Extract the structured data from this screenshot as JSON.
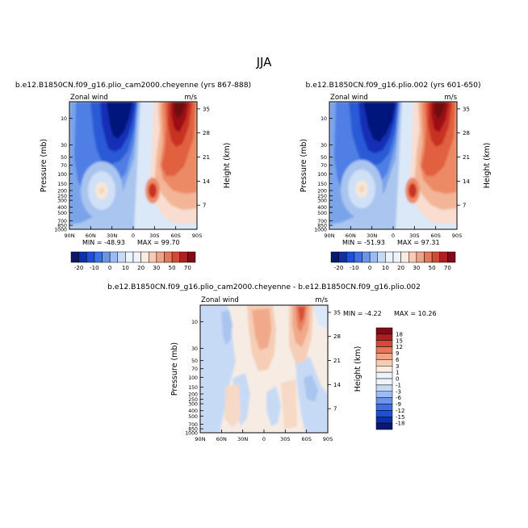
{
  "page": {
    "title": "JJA"
  },
  "colors": {
    "fill_blue_dark": "#1f3fd6",
    "fill_red": "#e8603f",
    "fill_white": "#ffffff"
  },
  "chart_data": [
    {
      "type": "heatmap",
      "variable": "Zonal wind",
      "units": "m/s",
      "title": "b.e12.B1850CN.f09_g16.plio_cam2000.cheyenne (yrs 867-888)",
      "xlabel": "",
      "ylabel": "Pressure (mb)",
      "y2label": "Height (km)",
      "x_ticks": [
        "90N",
        "60N",
        "30N",
        "0",
        "30S",
        "60S",
        "90S"
      ],
      "x_range": [
        90,
        -90
      ],
      "y_ticks": [
        10,
        30,
        50,
        70,
        100,
        150,
        200,
        250,
        300,
        400,
        500,
        700,
        850,
        1000
      ],
      "y_range_mb": [
        5,
        1000
      ],
      "y_scale": "log",
      "y2_ticks": [
        7,
        14,
        21,
        28,
        35
      ],
      "min": -48.93,
      "max": 99.7,
      "min_label": "MIN = -48.93",
      "max_label": "MAX = 99.70",
      "colorbar": {
        "orientation": "horizontal",
        "levels": [
          -20,
          -15,
          -10,
          -5,
          0,
          5,
          10,
          15,
          20,
          25,
          30,
          40,
          50,
          60,
          70
        ],
        "tick_labels": [
          "-20",
          "-10",
          "0",
          "10",
          "20",
          "30",
          "50",
          "70"
        ]
      },
      "features": [
        {
          "kind": "min",
          "value": -48.93,
          "lat": 25,
          "p_mb": 10
        },
        {
          "kind": "max",
          "value": 99.7,
          "lat": -60,
          "p_mb": 7
        },
        {
          "kind": "local_max",
          "value": 22,
          "lat": 50,
          "p_mb": 200
        },
        {
          "kind": "local_max",
          "value": 45,
          "lat": -35,
          "p_mb": 200
        }
      ]
    },
    {
      "type": "heatmap",
      "variable": "Zonal wind",
      "units": "m/s",
      "title": "b.e12.B1850CN.f09_g16.plio.002 (yrs 601-650)",
      "xlabel": "",
      "ylabel": "Pressure (mb)",
      "y2label": "Height (km)",
      "x_ticks": [
        "90N",
        "60N",
        "30N",
        "0",
        "30S",
        "60S",
        "90S"
      ],
      "x_range": [
        90,
        -90
      ],
      "y_ticks": [
        10,
        30,
        50,
        70,
        100,
        150,
        200,
        250,
        300,
        400,
        500,
        700,
        850,
        1000
      ],
      "y_range_mb": [
        5,
        1000
      ],
      "y_scale": "log",
      "y2_ticks": [
        7,
        14,
        21,
        28,
        35
      ],
      "min": -51.93,
      "max": 97.31,
      "min_label": "MIN = -51.93",
      "max_label": "MAX = 97.31",
      "colorbar": {
        "orientation": "horizontal",
        "levels": [
          -20,
          -15,
          -10,
          -5,
          0,
          5,
          10,
          15,
          20,
          25,
          30,
          40,
          50,
          60,
          70
        ],
        "tick_labels": [
          "-20",
          "-10",
          "0",
          "10",
          "20",
          "30",
          "50",
          "70"
        ]
      },
      "features": [
        {
          "kind": "min",
          "value": -51.93,
          "lat": 25,
          "p_mb": 10
        },
        {
          "kind": "max",
          "value": 97.31,
          "lat": -60,
          "p_mb": 7
        },
        {
          "kind": "local_max",
          "value": 22,
          "lat": 50,
          "p_mb": 200
        },
        {
          "kind": "local_max",
          "value": 45,
          "lat": -35,
          "p_mb": 200
        }
      ]
    },
    {
      "type": "heatmap",
      "variable": "Zonal wind",
      "units": "m/s",
      "title": "b.e12.B1850CN.f09_g16.plio_cam2000.cheyenne - b.e12.B1850CN.f09_g16.plio.002",
      "xlabel": "",
      "ylabel": "Pressure (mb)",
      "y2label": "Height (km)",
      "x_ticks": [
        "90N",
        "60N",
        "30N",
        "0",
        "30S",
        "60S",
        "90S"
      ],
      "x_range": [
        90,
        -90
      ],
      "y_ticks": [
        10,
        30,
        50,
        70,
        100,
        150,
        200,
        250,
        300,
        400,
        500,
        700,
        850,
        1000
      ],
      "y_range_mb": [
        5,
        1000
      ],
      "y_scale": "log",
      "y2_ticks": [
        7,
        14,
        21,
        28,
        35
      ],
      "min": -4.22,
      "max": 10.26,
      "min_label": "MIN = -4.22",
      "max_label": "MAX = 10.26",
      "colorbar": {
        "orientation": "vertical",
        "levels": [
          -18,
          -15,
          -12,
          -9,
          -6,
          -3,
          -1,
          0,
          1,
          3,
          6,
          9,
          12,
          15,
          18
        ],
        "tick_labels": [
          "18",
          "15",
          "12",
          "9",
          "6",
          "3",
          "1",
          "0",
          "-1",
          "-3",
          "-6",
          "-9",
          "-12",
          "-15",
          "-18"
        ]
      },
      "features": [
        {
          "kind": "max",
          "value": 10.26,
          "lat": -40,
          "p_mb": 8
        },
        {
          "kind": "local_max",
          "value": 5,
          "lat": 5,
          "p_mb": 15
        },
        {
          "kind": "min",
          "value": -4.22,
          "lat": 60,
          "p_mb": 10
        }
      ]
    }
  ]
}
